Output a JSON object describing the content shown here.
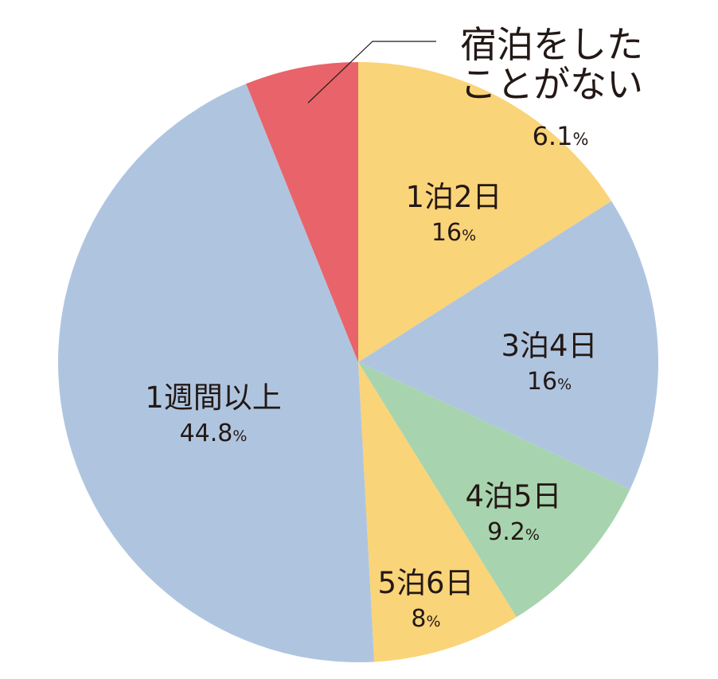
{
  "chart_data": {
    "type": "pie",
    "start_angle_deg": 0,
    "direction": "clockwise",
    "slices": [
      {
        "label": "1泊2日",
        "value": 16,
        "value_text": "16",
        "unit": "%",
        "color": "#fad478"
      },
      {
        "label": "3泊4日",
        "value": 16,
        "value_text": "16",
        "unit": "%",
        "color": "#afc5df"
      },
      {
        "label": "4泊5日",
        "value": 9.2,
        "value_text": "9.2",
        "unit": "%",
        "color": "#a7d4ae"
      },
      {
        "label": "5泊6日",
        "value": 8,
        "value_text": "8",
        "unit": "%",
        "color": "#fad478"
      },
      {
        "label": "1週間以上",
        "value": 44.8,
        "value_text": "44.8",
        "unit": "%",
        "color": "#afc5df"
      },
      {
        "label_lines": [
          "宿泊をした",
          "ことがない"
        ],
        "label": "宿泊をしたことがない",
        "value": 6.1,
        "value_text": "6.1",
        "unit": "%",
        "color": "#e8646a"
      }
    ]
  }
}
